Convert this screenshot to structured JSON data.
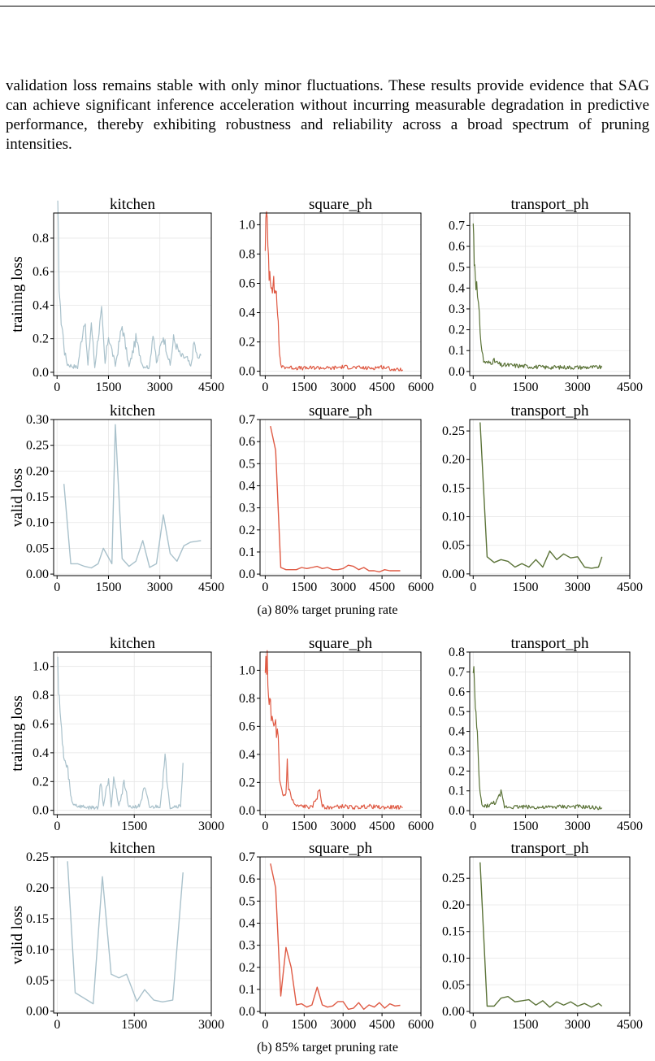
{
  "text": {
    "paragraph": "validation loss remains stable with only minor fluctuations. These results provide evidence that SAG can achieve significant inference acceleration without incurring measurable degradation in predictive performance, thereby exhibiting robustness and reliability across a broad spectrum of pruning intensities.",
    "caption_a": "(a) 80% target pruning rate",
    "caption_b": "(b) 85% target pruning rate"
  },
  "colors": {
    "kitchen": "#a9c1cb",
    "square_ph": "#df5a44",
    "transport_ph": "#5b7338"
  },
  "chart_data": [
    {
      "type": "line",
      "group": "a",
      "title": "kitchen",
      "ylabel": "training loss",
      "series_color": "kitchen",
      "xlim": [
        -100,
        4500
      ],
      "ylim": [
        -0.02,
        0.95
      ],
      "xticks": [
        0,
        1500,
        3000,
        4500
      ],
      "yticks": [
        0.0,
        0.2,
        0.4,
        0.6,
        0.8
      ],
      "yfmt": 1,
      "noisy": true,
      "x": [
        20,
        60,
        100,
        160,
        220,
        300,
        400,
        600,
        800,
        900,
        1000,
        1100,
        1200,
        1300,
        1400,
        1500,
        1700,
        1900,
        2100,
        2300,
        2500,
        2700,
        2800,
        2900,
        3100,
        3300,
        3400,
        3600,
        3800,
        3900,
        4000,
        4100,
        4200
      ],
      "y": [
        0.93,
        0.55,
        0.35,
        0.25,
        0.12,
        0.05,
        0.04,
        0.03,
        0.32,
        0.04,
        0.3,
        0.03,
        0.22,
        0.35,
        0.05,
        0.22,
        0.04,
        0.28,
        0.03,
        0.2,
        0.04,
        0.03,
        0.25,
        0.05,
        0.22,
        0.04,
        0.2,
        0.1,
        0.08,
        0.03,
        0.18,
        0.08,
        0.1
      ]
    },
    {
      "type": "line",
      "group": "a",
      "title": "square_ph",
      "series_color": "square_ph",
      "xlim": [
        -200,
        6000
      ],
      "ylim": [
        -0.03,
        1.08
      ],
      "xticks": [
        0,
        1500,
        3000,
        4500,
        6000
      ],
      "yticks": [
        0.0,
        0.2,
        0.4,
        0.6,
        0.8,
        1.0
      ],
      "yfmt": 1,
      "noisy": true,
      "x": [
        0,
        50,
        100,
        150,
        200,
        250,
        300,
        350,
        400,
        450,
        500,
        550,
        600,
        700,
        1000,
        1500,
        2000,
        2500,
        3000,
        3500,
        4000,
        4500,
        5000,
        5300
      ],
      "y": [
        0.9,
        1.05,
        0.85,
        0.7,
        0.65,
        0.62,
        0.6,
        0.55,
        0.58,
        0.45,
        0.35,
        0.1,
        0.04,
        0.03,
        0.025,
        0.02,
        0.025,
        0.02,
        0.03,
        0.025,
        0.02,
        0.03,
        0.01,
        0.01
      ]
    },
    {
      "type": "line",
      "group": "a",
      "title": "transport_ph",
      "series_color": "transport_ph",
      "xlim": [
        -100,
        4500
      ],
      "ylim": [
        -0.02,
        0.76
      ],
      "xticks": [
        0,
        1500,
        3000,
        4500
      ],
      "yticks": [
        0.0,
        0.1,
        0.2,
        0.3,
        0.4,
        0.5,
        0.6,
        0.7
      ],
      "yfmt": 1,
      "noisy": true,
      "x": [
        0,
        30,
        60,
        100,
        150,
        200,
        250,
        300,
        400,
        600,
        800,
        1000,
        1500,
        2000,
        2500,
        3000,
        3400,
        3700
      ],
      "y": [
        0.72,
        0.55,
        0.5,
        0.4,
        0.3,
        0.2,
        0.1,
        0.05,
        0.04,
        0.05,
        0.03,
        0.03,
        0.025,
        0.02,
        0.02,
        0.02,
        0.02,
        0.02
      ]
    },
    {
      "type": "line",
      "group": "a",
      "title": "kitchen",
      "ylabel": "valid loss",
      "series_color": "kitchen",
      "xlim": [
        -100,
        4500
      ],
      "ylim": [
        -0.003,
        0.3
      ],
      "xticks": [
        0,
        1500,
        3000,
        4500
      ],
      "yticks": [
        0.0,
        0.05,
        0.1,
        0.15,
        0.2,
        0.25,
        0.3
      ],
      "yfmt": 2,
      "noisy": false,
      "x": [
        200,
        400,
        600,
        800,
        1000,
        1200,
        1350,
        1600,
        1700,
        1900,
        2100,
        2300,
        2500,
        2700,
        2900,
        3100,
        3300,
        3500,
        3700,
        3900,
        4200
      ],
      "y": [
        0.175,
        0.02,
        0.02,
        0.015,
        0.012,
        0.02,
        0.05,
        0.02,
        0.29,
        0.03,
        0.015,
        0.025,
        0.065,
        0.013,
        0.02,
        0.115,
        0.04,
        0.025,
        0.055,
        0.062,
        0.065
      ]
    },
    {
      "type": "line",
      "group": "a",
      "title": "square_ph",
      "series_color": "square_ph",
      "xlim": [
        -200,
        6000
      ],
      "ylim": [
        -0.007,
        0.7
      ],
      "xticks": [
        0,
        1500,
        3000,
        4500,
        6000
      ],
      "yticks": [
        0.0,
        0.1,
        0.2,
        0.3,
        0.4,
        0.5,
        0.6,
        0.7
      ],
      "yfmt": 1,
      "noisy": false,
      "x": [
        200,
        400,
        600,
        800,
        1000,
        1200,
        1400,
        1600,
        1800,
        2000,
        2200,
        2400,
        2600,
        2800,
        3000,
        3200,
        3400,
        3600,
        3800,
        4000,
        4200,
        4400,
        4600,
        4800,
        5000,
        5200
      ],
      "y": [
        0.67,
        0.56,
        0.03,
        0.02,
        0.02,
        0.02,
        0.03,
        0.025,
        0.03,
        0.035,
        0.025,
        0.03,
        0.02,
        0.02,
        0.025,
        0.04,
        0.035,
        0.02,
        0.03,
        0.015,
        0.015,
        0.01,
        0.02,
        0.015,
        0.015,
        0.015
      ]
    },
    {
      "type": "line",
      "group": "a",
      "title": "transport_ph",
      "series_color": "transport_ph",
      "xlim": [
        -100,
        4500
      ],
      "ylim": [
        -0.003,
        0.27
      ],
      "xticks": [
        0,
        1500,
        3000,
        4500
      ],
      "yticks": [
        0.0,
        0.05,
        0.1,
        0.15,
        0.2,
        0.25
      ],
      "yfmt": 2,
      "noisy": false,
      "x": [
        200,
        400,
        600,
        800,
        1000,
        1200,
        1400,
        1600,
        1800,
        2000,
        2200,
        2400,
        2600,
        2800,
        3000,
        3200,
        3400,
        3600,
        3700
      ],
      "y": [
        0.265,
        0.03,
        0.02,
        0.025,
        0.022,
        0.012,
        0.018,
        0.012,
        0.025,
        0.012,
        0.04,
        0.025,
        0.035,
        0.028,
        0.03,
        0.012,
        0.01,
        0.012,
        0.03
      ]
    },
    {
      "type": "line",
      "group": "b",
      "title": "kitchen",
      "ylabel": "training loss",
      "series_color": "kitchen",
      "xlim": [
        -70,
        3000
      ],
      "ylim": [
        -0.03,
        1.1
      ],
      "xticks": [
        0,
        1500,
        3000
      ],
      "yticks": [
        0.0,
        0.2,
        0.4,
        0.6,
        0.8,
        1.0
      ],
      "yfmt": 1,
      "noisy": true,
      "x": [
        10,
        40,
        70,
        100,
        140,
        180,
        220,
        260,
        300,
        400,
        600,
        800,
        850,
        900,
        1000,
        1050,
        1100,
        1200,
        1300,
        1400,
        1600,
        1700,
        1800,
        2000,
        2100,
        2200,
        2300,
        2400,
        2450
      ],
      "y": [
        1.05,
        0.8,
        0.6,
        0.45,
        0.35,
        0.3,
        0.25,
        0.1,
        0.05,
        0.03,
        0.02,
        0.02,
        0.22,
        0.03,
        0.24,
        0.03,
        0.25,
        0.02,
        0.2,
        0.02,
        0.03,
        0.15,
        0.02,
        0.03,
        0.35,
        0.02,
        0.03,
        0.03,
        0.33
      ]
    },
    {
      "type": "line",
      "group": "b",
      "title": "square_ph",
      "series_color": "square_ph",
      "xlim": [
        -200,
        6000
      ],
      "ylim": [
        -0.03,
        1.13
      ],
      "xticks": [
        0,
        1500,
        3000,
        4500,
        6000
      ],
      "yticks": [
        0.0,
        0.2,
        0.4,
        0.6,
        0.8,
        1.0
      ],
      "yfmt": 1,
      "noisy": true,
      "x": [
        0,
        50,
        100,
        150,
        200,
        300,
        400,
        500,
        550,
        650,
        700,
        800,
        850,
        900,
        1000,
        1100,
        1200,
        1500,
        1800,
        2000,
        2100,
        2200,
        2400,
        3000,
        3500,
        4000,
        4500,
        5000,
        5300
      ],
      "y": [
        0.9,
        1.1,
        0.95,
        0.8,
        0.7,
        0.6,
        0.6,
        0.5,
        0.2,
        0.12,
        0.1,
        0.12,
        0.35,
        0.15,
        0.1,
        0.05,
        0.03,
        0.03,
        0.02,
        0.1,
        0.15,
        0.03,
        0.02,
        0.03,
        0.02,
        0.03,
        0.02,
        0.025,
        0.02
      ]
    },
    {
      "type": "line",
      "group": "b",
      "title": "transport_ph",
      "series_color": "transport_ph",
      "xlim": [
        -100,
        4500
      ],
      "ylim": [
        -0.02,
        0.8
      ],
      "xticks": [
        0,
        1500,
        3000,
        4500
      ],
      "yticks": [
        0.0,
        0.1,
        0.2,
        0.3,
        0.4,
        0.5,
        0.6,
        0.7,
        0.8
      ],
      "yfmt": 1,
      "noisy": true,
      "x": [
        0,
        40,
        80,
        120,
        160,
        200,
        250,
        300,
        500,
        700,
        800,
        900,
        1000,
        1500,
        2000,
        2500,
        3000,
        3500,
        3700
      ],
      "y": [
        0.77,
        0.6,
        0.45,
        0.35,
        0.2,
        0.08,
        0.03,
        0.02,
        0.03,
        0.05,
        0.09,
        0.02,
        0.02,
        0.02,
        0.015,
        0.02,
        0.02,
        0.015,
        0.015
      ]
    },
    {
      "type": "line",
      "group": "b",
      "title": "kitchen",
      "ylabel": "valid loss",
      "series_color": "kitchen",
      "xlim": [
        -70,
        3000
      ],
      "ylim": [
        -0.003,
        0.25
      ],
      "xticks": [
        0,
        1500,
        3000
      ],
      "yticks": [
        0.0,
        0.05,
        0.1,
        0.15,
        0.2,
        0.25
      ],
      "yfmt": 2,
      "noisy": false,
      "x": [
        200,
        350,
        700,
        880,
        1050,
        1200,
        1350,
        1550,
        1700,
        1880,
        2050,
        2250,
        2450
      ],
      "y": [
        0.243,
        0.03,
        0.012,
        0.218,
        0.06,
        0.054,
        0.06,
        0.016,
        0.035,
        0.018,
        0.015,
        0.018,
        0.225
      ]
    },
    {
      "type": "line",
      "group": "b",
      "title": "square_ph",
      "series_color": "square_ph",
      "xlim": [
        -200,
        6000
      ],
      "ylim": [
        -0.007,
        0.7
      ],
      "xticks": [
        0,
        1500,
        3000,
        4500,
        6000
      ],
      "yticks": [
        0.0,
        0.1,
        0.2,
        0.3,
        0.4,
        0.5,
        0.6,
        0.7
      ],
      "yfmt": 1,
      "noisy": false,
      "x": [
        200,
        400,
        600,
        800,
        1000,
        1200,
        1400,
        1600,
        1800,
        2000,
        2200,
        2400,
        2600,
        2800,
        3000,
        3200,
        3400,
        3600,
        3800,
        4000,
        4200,
        4400,
        4600,
        4800,
        5000,
        5200
      ],
      "y": [
        0.67,
        0.56,
        0.07,
        0.29,
        0.2,
        0.03,
        0.035,
        0.02,
        0.03,
        0.11,
        0.03,
        0.02,
        0.025,
        0.045,
        0.045,
        0.01,
        0.015,
        0.04,
        0.01,
        0.03,
        0.02,
        0.04,
        0.015,
        0.035,
        0.025,
        0.028
      ]
    },
    {
      "type": "line",
      "group": "b",
      "title": "transport_ph",
      "series_color": "transport_ph",
      "xlim": [
        -100,
        4500
      ],
      "ylim": [
        -0.003,
        0.29
      ],
      "xticks": [
        0,
        1500,
        3000,
        4500
      ],
      "yticks": [
        0.0,
        0.05,
        0.1,
        0.15,
        0.2,
        0.25
      ],
      "yfmt": 2,
      "noisy": false,
      "x": [
        200,
        400,
        600,
        800,
        1000,
        1200,
        1400,
        1600,
        1800,
        2000,
        2200,
        2400,
        2600,
        2800,
        3000,
        3200,
        3400,
        3600,
        3700
      ],
      "y": [
        0.28,
        0.01,
        0.01,
        0.025,
        0.028,
        0.018,
        0.02,
        0.022,
        0.012,
        0.02,
        0.008,
        0.018,
        0.012,
        0.018,
        0.01,
        0.015,
        0.008,
        0.015,
        0.01
      ]
    }
  ]
}
